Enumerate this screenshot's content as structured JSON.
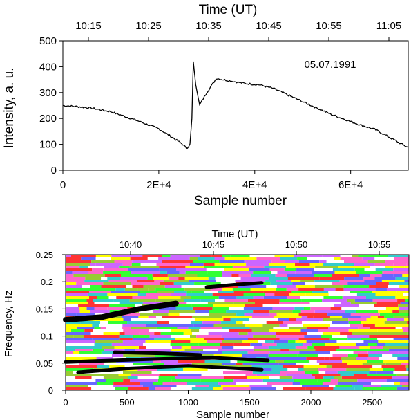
{
  "chart_data": [
    {
      "type": "line",
      "top_axis_label": "Time (UT)",
      "top_ticks": [
        "10:15",
        "10:25",
        "10:35",
        "10:45",
        "10:55",
        "11:05"
      ],
      "xlabel": "Sample number",
      "ylabel": "Intensity, a. u.",
      "xlim": [
        0,
        72000
      ],
      "ylim": [
        0,
        500
      ],
      "x_ticks": [
        0,
        20000,
        40000,
        60000
      ],
      "x_tick_labels": [
        "0",
        "2E+4",
        "4E+4",
        "6E+4"
      ],
      "y_ticks": [
        0,
        100,
        200,
        300,
        400,
        500
      ],
      "y_tick_labels": [
        "0",
        "100",
        "200",
        "300",
        "400",
        "500"
      ],
      "annotation": "05.07.1991",
      "series": [
        {
          "x": [
            0,
            3000,
            6000,
            10000,
            15000,
            20000,
            23000,
            25000,
            25800,
            26500,
            26900,
            27200,
            27700,
            28500,
            30000,
            32000,
            35000,
            38000,
            41000,
            44000,
            47000,
            50000,
            53000,
            56000,
            59000,
            62000,
            65000,
            68000,
            70500,
            72000
          ],
          "y": [
            250,
            246,
            240,
            226,
            195,
            160,
            125,
            100,
            84,
            100,
            200,
            420,
            330,
            252,
            300,
            355,
            345,
            335,
            330,
            315,
            290,
            265,
            240,
            215,
            195,
            175,
            158,
            128,
            102,
            88
          ]
        }
      ]
    },
    {
      "type": "heatmap",
      "top_axis_label": "Time (UT)",
      "top_ticks": [
        "10:40",
        "10:45",
        "10:50",
        "10:55"
      ],
      "xlabel": "Sample number",
      "ylabel": "Frequency, Hz",
      "xlim": [
        0,
        2800
      ],
      "ylim": [
        0,
        0.25
      ],
      "x_ticks": [
        0,
        500,
        1000,
        1500,
        2000,
        2500
      ],
      "x_tick_labels": [
        "0",
        "500",
        "1000",
        "1500",
        "2000",
        "2500"
      ],
      "y_ticks": [
        0,
        0.05,
        0.1,
        0.15,
        0.2,
        0.25
      ],
      "y_tick_labels": [
        "0",
        "0.05",
        "0.1",
        "0.15",
        "0.2",
        "0.25"
      ],
      "palette": [
        "#ffffff",
        "#ffff00",
        "#ff3333",
        "#ff66cc",
        "#cc66ff",
        "#6666ff",
        "#33cccc",
        "#33ff33",
        "#99cc33",
        "#000000"
      ],
      "ridges": [
        {
          "x": [
            0,
            300,
            600,
            900
          ],
          "y": [
            0.13,
            0.135,
            0.15,
            0.16
          ]
        },
        {
          "x": [
            1150,
            1400,
            1600
          ],
          "y": [
            0.19,
            0.195,
            0.198
          ]
        },
        {
          "x": [
            0,
            400,
            800,
            1200,
            1650
          ],
          "y": [
            0.052,
            0.055,
            0.058,
            0.06,
            0.055
          ]
        },
        {
          "x": [
            100,
            500,
            1000,
            1600
          ],
          "y": [
            0.033,
            0.04,
            0.045,
            0.038
          ]
        },
        {
          "x": [
            400,
            800,
            1100
          ],
          "y": [
            0.07,
            0.068,
            0.065
          ]
        }
      ]
    }
  ]
}
